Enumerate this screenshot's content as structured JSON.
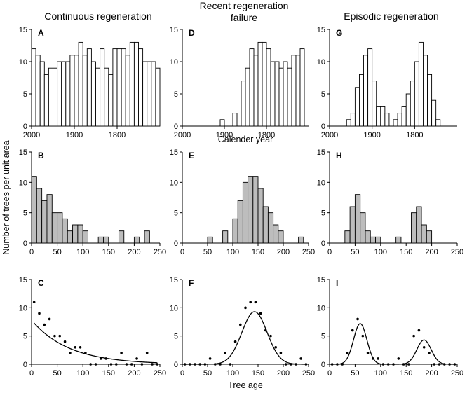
{
  "figure": {
    "column_titles": [
      {
        "line1": "Continuous regeneration",
        "line2": ""
      },
      {
        "line1": "Recent regeneration",
        "line2": "failure"
      },
      {
        "line1": "Episodic regeneration",
        "line2": ""
      }
    ],
    "ylabel": "Number of trees per unit area",
    "row1_xlabel": "Calender year",
    "row3_xlabel": "Tree age"
  },
  "chart_data": [
    {
      "panel": "A",
      "type": "bar",
      "style": "white",
      "x": [
        1995,
        1985,
        1975,
        1965,
        1955,
        1945,
        1935,
        1925,
        1915,
        1905,
        1895,
        1885,
        1875,
        1865,
        1855,
        1845,
        1835,
        1825,
        1815,
        1805,
        1795,
        1785,
        1775,
        1765,
        1755,
        1745,
        1735,
        1725,
        1715,
        1705
      ],
      "values": [
        12,
        11,
        10,
        8,
        9,
        9,
        10,
        10,
        10,
        11,
        11,
        13,
        11,
        12,
        10,
        9,
        12,
        9,
        8,
        12,
        12,
        12,
        11,
        13,
        13,
        12,
        10,
        10,
        10,
        9
      ],
      "xlim": [
        2000,
        1700
      ],
      "ylim": [
        0,
        15
      ],
      "xticks": [
        2000,
        1900,
        1800
      ],
      "xtick_labels": [
        "2000",
        "1900",
        "1800"
      ],
      "yticks": [
        0,
        5,
        10,
        15
      ],
      "ytick_labels": [
        "0",
        "5",
        "10",
        "15"
      ]
    },
    {
      "panel": "D",
      "type": "bar",
      "style": "white",
      "x": [
        1995,
        1985,
        1975,
        1965,
        1955,
        1945,
        1935,
        1925,
        1915,
        1905,
        1895,
        1885,
        1875,
        1865,
        1855,
        1845,
        1835,
        1825,
        1815,
        1805,
        1795,
        1785,
        1775,
        1765,
        1755,
        1745,
        1735,
        1725,
        1715,
        1705
      ],
      "values": [
        0,
        0,
        0,
        0,
        0,
        0,
        0,
        0,
        0,
        1,
        0,
        0,
        2,
        0,
        7,
        9,
        12,
        11,
        13,
        13,
        12,
        10,
        10,
        9,
        10,
        9,
        11,
        11,
        12,
        0
      ],
      "xlim": [
        2000,
        1700
      ],
      "ylim": [
        0,
        15
      ],
      "xticks": [
        2000,
        1900,
        1800
      ],
      "xtick_labels": [
        "2000",
        "1900",
        "1800"
      ],
      "yticks": [
        0,
        5,
        10,
        15
      ],
      "ytick_labels": [
        "0",
        "5",
        "10",
        "15"
      ]
    },
    {
      "panel": "G",
      "type": "bar",
      "style": "white",
      "x": [
        1995,
        1985,
        1975,
        1965,
        1955,
        1945,
        1935,
        1925,
        1915,
        1905,
        1895,
        1885,
        1875,
        1865,
        1855,
        1845,
        1835,
        1825,
        1815,
        1805,
        1795,
        1785,
        1775,
        1765,
        1755,
        1745,
        1735,
        1725,
        1715,
        1705
      ],
      "values": [
        0,
        0,
        0,
        0,
        1,
        2,
        6,
        8,
        11,
        12,
        7,
        3,
        3,
        2,
        0,
        1,
        2,
        3,
        5,
        7,
        10,
        13,
        11,
        8,
        4,
        1,
        0,
        0,
        0,
        0
      ],
      "xlim": [
        2000,
        1700
      ],
      "ylim": [
        0,
        15
      ],
      "xticks": [
        2000,
        1900,
        1800
      ],
      "xtick_labels": [
        "2000",
        "1900",
        "1800"
      ],
      "yticks": [
        0,
        5,
        10,
        15
      ],
      "ytick_labels": [
        "0",
        "5",
        "10",
        "15"
      ]
    },
    {
      "panel": "B",
      "type": "bar",
      "style": "gray",
      "x": [
        5,
        15,
        25,
        35,
        45,
        55,
        65,
        75,
        85,
        95,
        105,
        115,
        125,
        135,
        145,
        155,
        165,
        175,
        185,
        195,
        205,
        215,
        225,
        235,
        245
      ],
      "values": [
        11,
        9,
        7,
        8,
        5,
        5,
        4,
        2,
        3,
        3,
        2,
        0,
        0,
        1,
        1,
        0,
        0,
        2,
        0,
        0,
        1,
        0,
        2,
        0,
        0
      ],
      "xlim": [
        0,
        250
      ],
      "ylim": [
        0,
        15
      ],
      "xticks": [
        0,
        50,
        100,
        150,
        200,
        250
      ],
      "xtick_labels": [
        "0",
        "50",
        "100",
        "150",
        "200",
        "250"
      ],
      "yticks": [
        0,
        5,
        10,
        15
      ],
      "ytick_labels": [
        "0",
        "5",
        "10",
        "15"
      ]
    },
    {
      "panel": "E",
      "type": "bar",
      "style": "gray",
      "x": [
        5,
        15,
        25,
        35,
        45,
        55,
        65,
        75,
        85,
        95,
        105,
        115,
        125,
        135,
        145,
        155,
        165,
        175,
        185,
        195,
        205,
        215,
        225,
        235,
        245
      ],
      "values": [
        0,
        0,
        0,
        0,
        0,
        1,
        0,
        0,
        2,
        0,
        4,
        7,
        10,
        11,
        11,
        9,
        6,
        5,
        3,
        2,
        0,
        0,
        0,
        1,
        0
      ],
      "xlim": [
        0,
        250
      ],
      "ylim": [
        0,
        15
      ],
      "xticks": [
        0,
        50,
        100,
        150,
        200,
        250
      ],
      "xtick_labels": [
        "0",
        "50",
        "100",
        "150",
        "200",
        "250"
      ],
      "yticks": [
        0,
        5,
        10,
        15
      ],
      "ytick_labels": [
        "0",
        "5",
        "10",
        "15"
      ]
    },
    {
      "panel": "H",
      "type": "bar",
      "style": "gray",
      "x": [
        5,
        15,
        25,
        35,
        45,
        55,
        65,
        75,
        85,
        95,
        105,
        115,
        125,
        135,
        145,
        155,
        165,
        175,
        185,
        195,
        205,
        215,
        225,
        235,
        245
      ],
      "values": [
        0,
        0,
        0,
        2,
        6,
        8,
        5,
        2,
        1,
        1,
        0,
        0,
        0,
        1,
        0,
        0,
        5,
        6,
        3,
        2,
        0,
        0,
        0,
        0,
        0
      ],
      "xlim": [
        0,
        250
      ],
      "ylim": [
        0,
        15
      ],
      "xticks": [
        0,
        50,
        100,
        150,
        200,
        250
      ],
      "xtick_labels": [
        "0",
        "50",
        "100",
        "150",
        "200",
        "250"
      ],
      "yticks": [
        0,
        5,
        10,
        15
      ],
      "ytick_labels": [
        "0",
        "5",
        "10",
        "15"
      ]
    },
    {
      "panel": "C",
      "type": "scatter",
      "x": [
        5,
        15,
        25,
        35,
        45,
        55,
        65,
        75,
        85,
        95,
        105,
        115,
        125,
        135,
        145,
        155,
        165,
        175,
        185,
        195,
        205,
        215,
        225,
        235,
        245
      ],
      "values": [
        11,
        9,
        7,
        8,
        5,
        5,
        4,
        2,
        3,
        3,
        2,
        0,
        0,
        1,
        1,
        0,
        0,
        2,
        0,
        0,
        1,
        0,
        2,
        0,
        0
      ],
      "fit": {
        "kind": "exp",
        "a": 7.8,
        "k": 0.0137
      },
      "xlim": [
        0,
        250
      ],
      "ylim": [
        0,
        15
      ],
      "xticks": [
        0,
        50,
        100,
        150,
        200,
        250
      ],
      "xtick_labels": [
        "0",
        "50",
        "100",
        "150",
        "200",
        "250"
      ],
      "yticks": [
        0,
        5,
        10,
        15
      ],
      "ytick_labels": [
        "0",
        "5",
        "10",
        "15"
      ]
    },
    {
      "panel": "F",
      "type": "scatter",
      "x": [
        5,
        15,
        25,
        35,
        45,
        55,
        65,
        75,
        85,
        95,
        105,
        115,
        125,
        135,
        145,
        155,
        165,
        175,
        185,
        195,
        205,
        215,
        225,
        235,
        245
      ],
      "values": [
        0,
        0,
        0,
        0,
        0,
        1,
        0,
        0,
        2,
        0,
        4,
        7,
        10,
        11,
        11,
        9,
        6,
        5,
        3,
        2,
        0,
        0,
        0,
        1,
        0
      ],
      "fit": {
        "kind": "gauss",
        "peaks": [
          {
            "a": 9.3,
            "mu": 143,
            "sigma": 25
          }
        ]
      },
      "xlim": [
        0,
        250
      ],
      "ylim": [
        0,
        15
      ],
      "xticks": [
        0,
        50,
        100,
        150,
        200,
        250
      ],
      "xtick_labels": [
        "0",
        "50",
        "100",
        "150",
        "200",
        "250"
      ],
      "yticks": [
        0,
        5,
        10,
        15
      ],
      "ytick_labels": [
        "0",
        "5",
        "10",
        "15"
      ]
    },
    {
      "panel": "I",
      "type": "scatter",
      "x": [
        5,
        15,
        25,
        35,
        45,
        55,
        65,
        75,
        85,
        95,
        105,
        115,
        125,
        135,
        145,
        155,
        165,
        175,
        185,
        195,
        205,
        215,
        225,
        235,
        245
      ],
      "values": [
        0,
        0,
        0,
        2,
        6,
        8,
        5,
        2,
        1,
        1,
        0,
        0,
        0,
        1,
        0,
        0,
        5,
        6,
        3,
        2,
        0,
        0,
        0,
        0,
        0
      ],
      "fit": {
        "kind": "gauss",
        "peaks": [
          {
            "a": 7.2,
            "mu": 60,
            "sigma": 13
          },
          {
            "a": 4.3,
            "mu": 185,
            "sigma": 14
          }
        ]
      },
      "xlim": [
        0,
        250
      ],
      "ylim": [
        0,
        15
      ],
      "xticks": [
        0,
        50,
        100,
        150,
        200,
        250
      ],
      "xtick_labels": [
        "0",
        "50",
        "100",
        "150",
        "200",
        "250"
      ],
      "yticks": [
        0,
        5,
        10,
        15
      ],
      "ytick_labels": [
        "0",
        "5",
        "10",
        "15"
      ]
    }
  ]
}
